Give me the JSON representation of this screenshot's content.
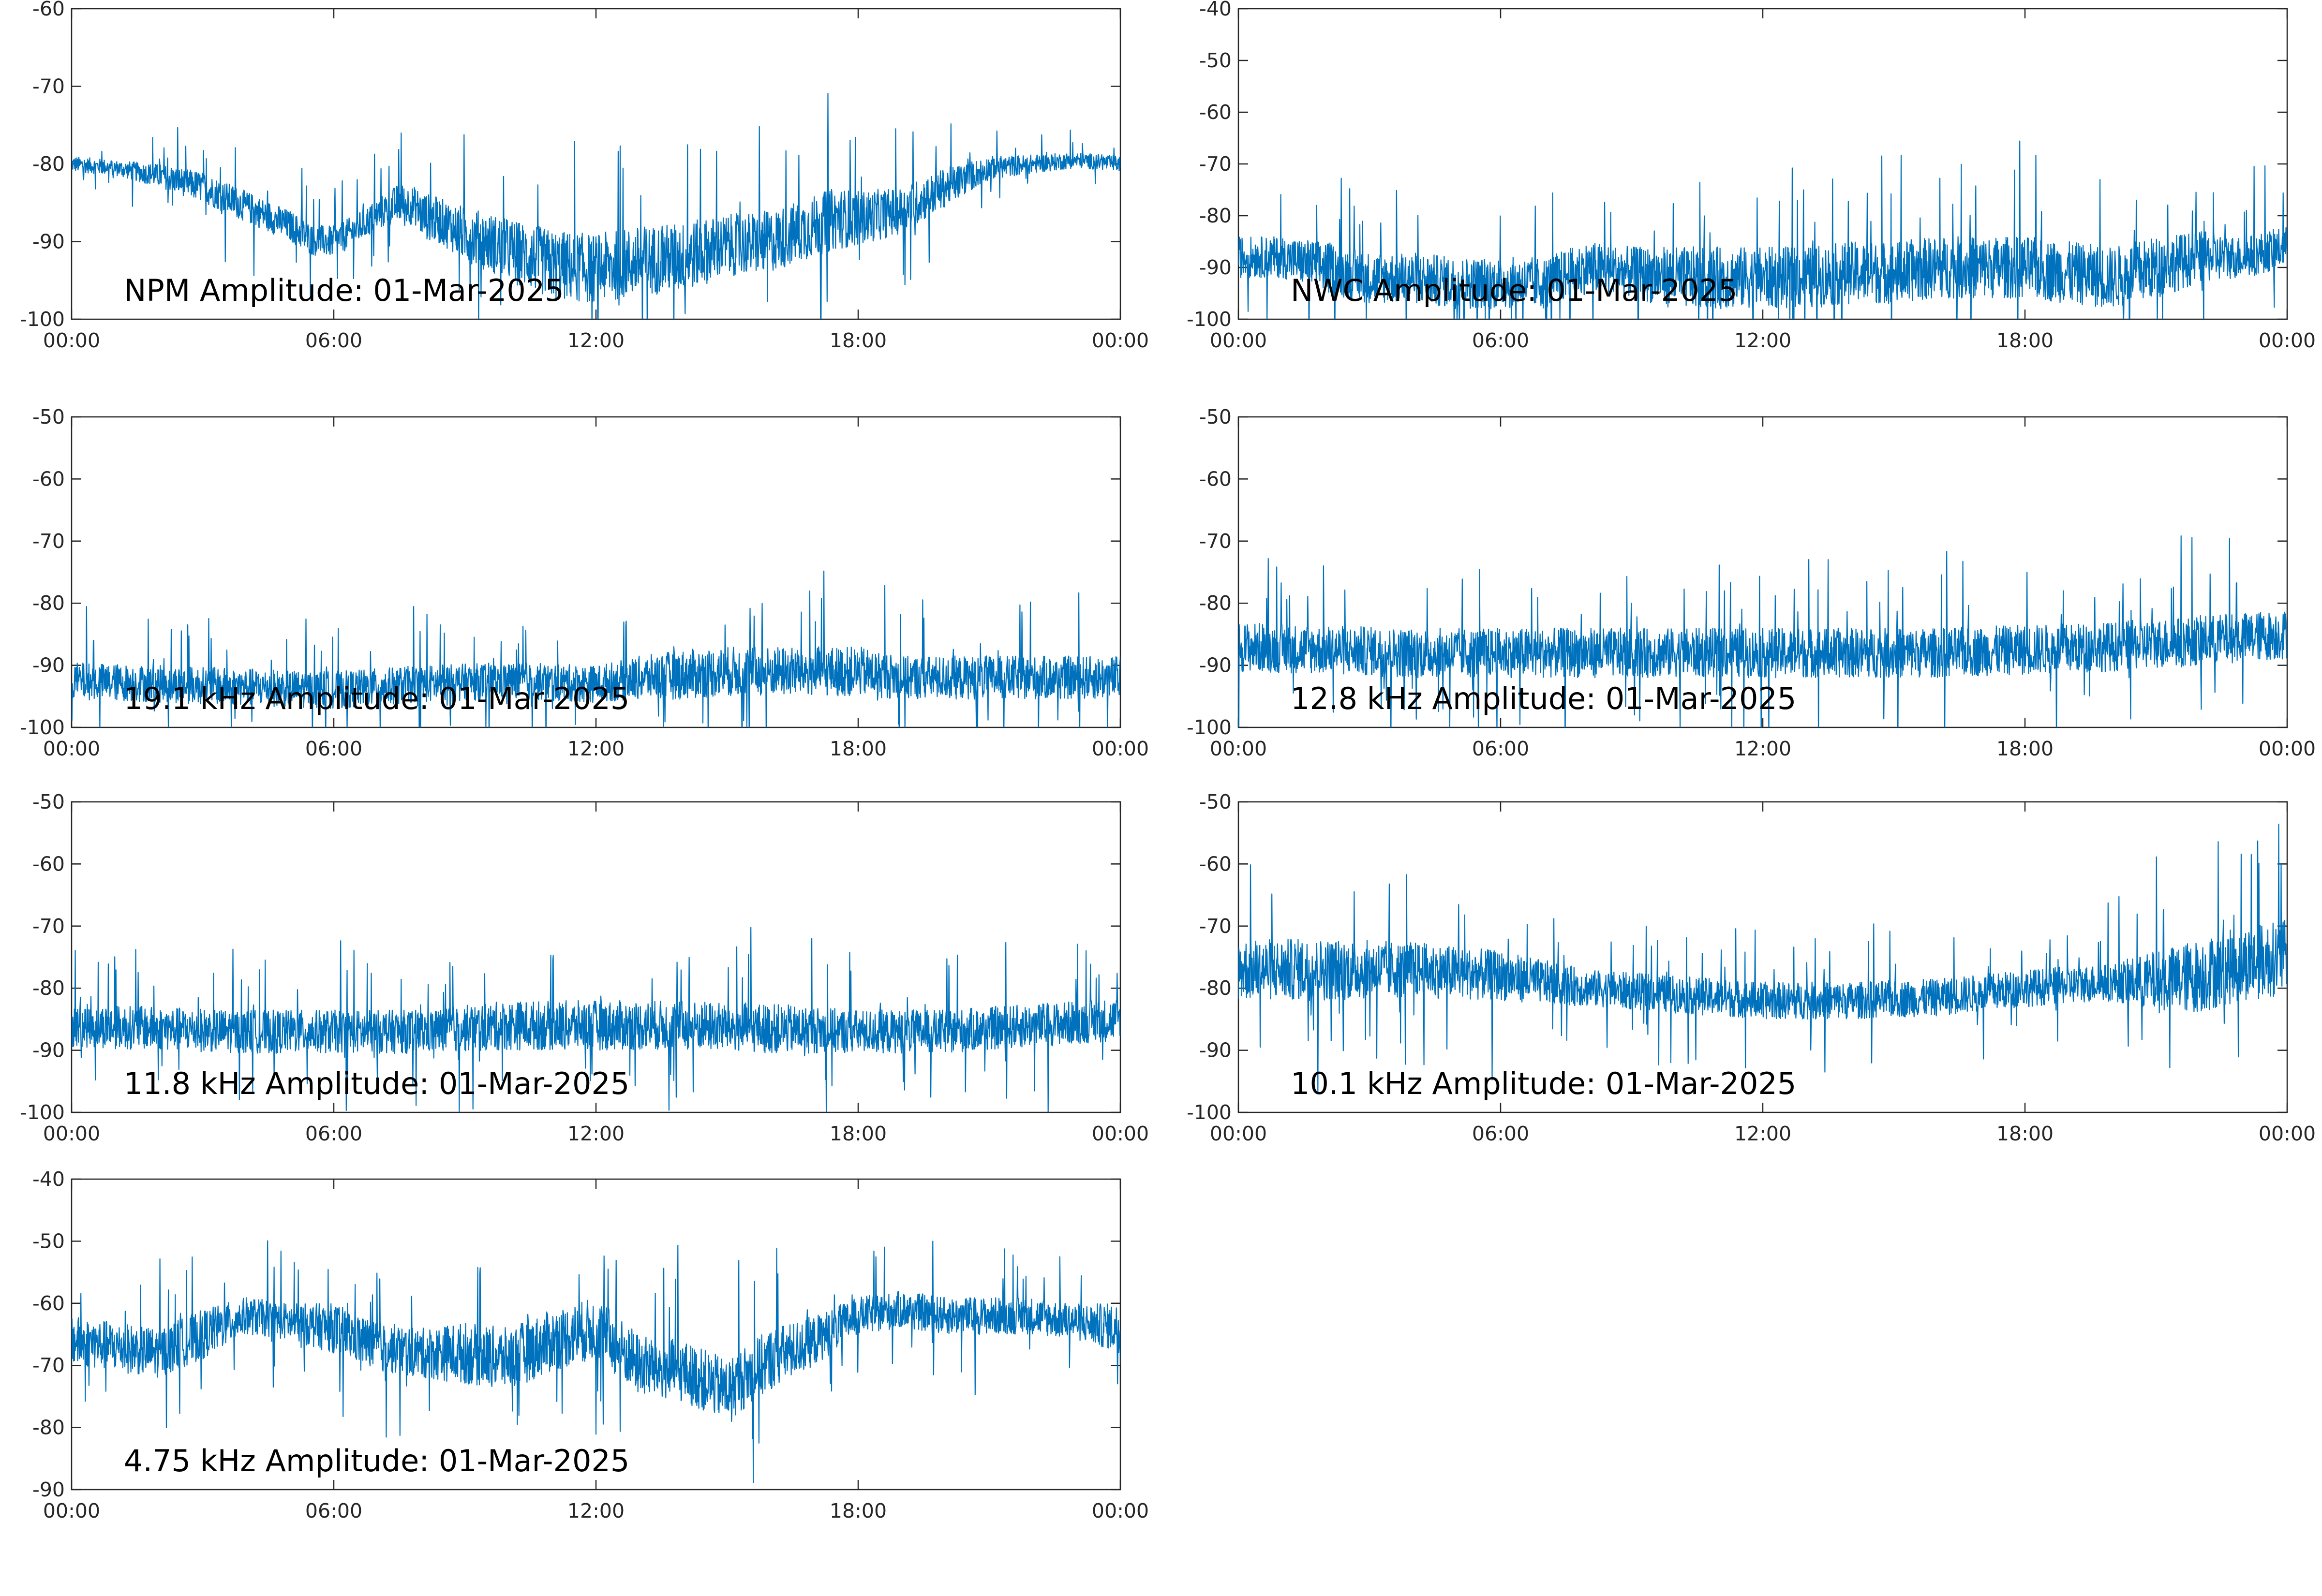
{
  "colors": {
    "trace": "#0072BD",
    "axes": "#262626",
    "background": "#ffffff"
  },
  "chart_data": [
    {
      "type": "line",
      "title": "NPM Amplitude: 01-Mar-2025",
      "ylim": [
        -100,
        -60
      ],
      "yticks": [
        -60,
        -70,
        -80,
        -90,
        -100
      ],
      "xticks": [
        "00:00",
        "06:00",
        "12:00",
        "18:00",
        "00:00"
      ],
      "xlim_hours": [
        0,
        24
      ],
      "series": [
        {
          "x": [
            0,
            1,
            2,
            3,
            4,
            5,
            5.5,
            6,
            6.5,
            7,
            7.5,
            7.9,
            8,
            8.5,
            9,
            10,
            11,
            12,
            13,
            14,
            15,
            16,
            17,
            17.5,
            18,
            19,
            20,
            21,
            22,
            23,
            24
          ],
          "y": [
            -80,
            -80.5,
            -81.5,
            -83,
            -85.5,
            -88,
            -89.8,
            -90,
            -88.5,
            -86.5,
            -85,
            -85.5,
            -86.5,
            -87.5,
            -89,
            -91,
            -93,
            -93.5,
            -92.5,
            -92,
            -90.5,
            -90,
            -88,
            -87,
            -87,
            -86,
            -83,
            -80.5,
            -80,
            -79.5,
            -80
          ],
          "spread": [
            1,
            1,
            1.5,
            2,
            2,
            2,
            2,
            2,
            2,
            2,
            2.5,
            2.5,
            3,
            3,
            3.5,
            4,
            4.5,
            4.5,
            4.5,
            4.5,
            4,
            4,
            4,
            4,
            3.5,
            3,
            2.5,
            1.5,
            1.2,
            1,
            1
          ]
        }
      ]
    },
    {
      "type": "line",
      "title": "NWC Amplitude: 01-Mar-2025",
      "ylim": [
        -100,
        -40
      ],
      "yticks": [
        -40,
        -50,
        -60,
        -70,
        -80,
        -90,
        -100
      ],
      "xticks": [
        "00:00",
        "06:00",
        "12:00",
        "18:00",
        "00:00"
      ],
      "xlim_hours": [
        0,
        24
      ],
      "series": [
        {
          "x": [
            0,
            1,
            2,
            3,
            4,
            5,
            6,
            7,
            8,
            9,
            10,
            11,
            12,
            13,
            14,
            15,
            16,
            17,
            18,
            19,
            20,
            21,
            22,
            23,
            24
          ],
          "y": [
            -88,
            -88,
            -90,
            -92,
            -92,
            -93,
            -93,
            -93,
            -90,
            -91,
            -92,
            -92,
            -92,
            -92,
            -91,
            -91,
            -90,
            -90,
            -90,
            -91,
            -92,
            -90,
            -88,
            -88,
            -86
          ],
          "spread": [
            4,
            4,
            5,
            5,
            5,
            5,
            5,
            5,
            5,
            5,
            6,
            6,
            6,
            6,
            6,
            6,
            6,
            6,
            6,
            6,
            6,
            6,
            5,
            4,
            4
          ]
        }
      ]
    },
    {
      "type": "line",
      "title": "19.1 kHz Amplitude: 01-Mar-2025",
      "ylim": [
        -100,
        -50
      ],
      "yticks": [
        -50,
        -60,
        -70,
        -80,
        -90,
        -100
      ],
      "xticks": [
        "00:00",
        "06:00",
        "12:00",
        "18:00",
        "00:00"
      ],
      "xlim_hours": [
        0,
        24
      ],
      "series": [
        {
          "x": [
            0,
            2,
            4,
            6,
            8,
            10,
            12,
            13,
            14,
            15,
            16,
            17,
            18,
            19,
            20,
            22,
            24
          ],
          "y": [
            -92.5,
            -93,
            -93.5,
            -94,
            -93,
            -92.5,
            -93,
            -92,
            -91.5,
            -91,
            -91,
            -91,
            -91,
            -92,
            -92,
            -92,
            -92
          ],
          "spread": [
            3,
            3,
            3,
            3,
            3,
            3,
            3,
            3.5,
            4,
            4,
            4,
            4,
            4,
            3.5,
            3.5,
            3.5,
            3.5
          ]
        }
      ]
    },
    {
      "type": "line",
      "title": "12.8 kHz Amplitude: 01-Mar-2025",
      "ylim": [
        -100,
        -50
      ],
      "yticks": [
        -50,
        -60,
        -70,
        -80,
        -90,
        -100
      ],
      "xticks": [
        "00:00",
        "06:00",
        "12:00",
        "18:00",
        "00:00"
      ],
      "xlim_hours": [
        0,
        24
      ],
      "series": [
        {
          "x": [
            0,
            2,
            4,
            6,
            8,
            10,
            12,
            14,
            16,
            18,
            20,
            22,
            24
          ],
          "y": [
            -87,
            -87.5,
            -88,
            -88,
            -88,
            -88,
            -88,
            -88,
            -88,
            -87.5,
            -87,
            -86,
            -85
          ],
          "spread": [
            4,
            4,
            4,
            4,
            4,
            4,
            4,
            4,
            4,
            4,
            4,
            4,
            4
          ]
        }
      ]
    },
    {
      "type": "line",
      "title": "11.8 kHz Amplitude: 01-Mar-2025",
      "ylim": [
        -100,
        -50
      ],
      "yticks": [
        -50,
        -60,
        -70,
        -80,
        -90,
        -100
      ],
      "xticks": [
        "00:00",
        "06:00",
        "12:00",
        "18:00",
        "00:00"
      ],
      "xlim_hours": [
        0,
        24
      ],
      "series": [
        {
          "x": [
            0,
            2,
            4,
            6,
            8,
            10,
            12,
            14,
            16,
            18,
            20,
            22,
            24
          ],
          "y": [
            -86,
            -86.5,
            -87,
            -87,
            -87,
            -86,
            -86,
            -86,
            -86.5,
            -87,
            -87,
            -86,
            -85
          ],
          "spread": [
            3.5,
            3.5,
            3.5,
            3.5,
            3.5,
            4,
            4,
            4,
            4,
            3.5,
            3.5,
            3.5,
            3.5
          ]
        }
      ]
    },
    {
      "type": "line",
      "title": "10.1 kHz Amplitude: 01-Mar-2025",
      "ylim": [
        -100,
        -50
      ],
      "yticks": [
        -50,
        -60,
        -70,
        -80,
        -90,
        -100
      ],
      "xticks": [
        "00:00",
        "06:00",
        "12:00",
        "18:00",
        "00:00"
      ],
      "xlim_hours": [
        0,
        24
      ],
      "series": [
        {
          "x": [
            0,
            2,
            4,
            6,
            8,
            10,
            12,
            14,
            16,
            18,
            20,
            21,
            22,
            23,
            24
          ],
          "y": [
            -77,
            -77,
            -77,
            -78,
            -80,
            -81,
            -82,
            -82,
            -81.5,
            -80,
            -79,
            -79,
            -78,
            -76,
            -75
          ],
          "spread": [
            5,
            5,
            4.5,
            4,
            3,
            3,
            3,
            3,
            3,
            3,
            3,
            5,
            6,
            6,
            6
          ]
        }
      ]
    },
    {
      "type": "line",
      "title": "4.75 kHz Amplitude: 01-Mar-2025",
      "ylim": [
        -90,
        -40
      ],
      "yticks": [
        -40,
        -50,
        -60,
        -70,
        -80,
        -90
      ],
      "xticks": [
        "00:00",
        "06:00",
        "12:00",
        "18:00",
        "00:00"
      ],
      "xlim_hours": [
        0,
        24
      ],
      "series": [
        {
          "x": [
            0,
            1,
            2,
            3,
            4,
            5,
            6,
            7,
            8,
            9,
            10,
            11,
            12,
            13,
            14,
            15,
            16,
            17,
            18,
            19,
            20,
            21,
            22,
            23,
            24
          ],
          "y": [
            -66,
            -67,
            -68,
            -65,
            -62,
            -63,
            -64,
            -67,
            -68,
            -68,
            -69,
            -66,
            -64,
            -70,
            -71,
            -74,
            -69,
            -66,
            -62,
            -61,
            -62,
            -62,
            -62,
            -63,
            -64
          ],
          "spread": [
            4,
            4,
            4,
            4,
            3,
            3,
            4,
            4,
            4,
            5,
            5,
            5,
            5,
            5,
            5,
            5,
            5,
            4,
            3,
            3,
            3,
            3,
            3,
            3,
            4
          ]
        }
      ]
    }
  ]
}
